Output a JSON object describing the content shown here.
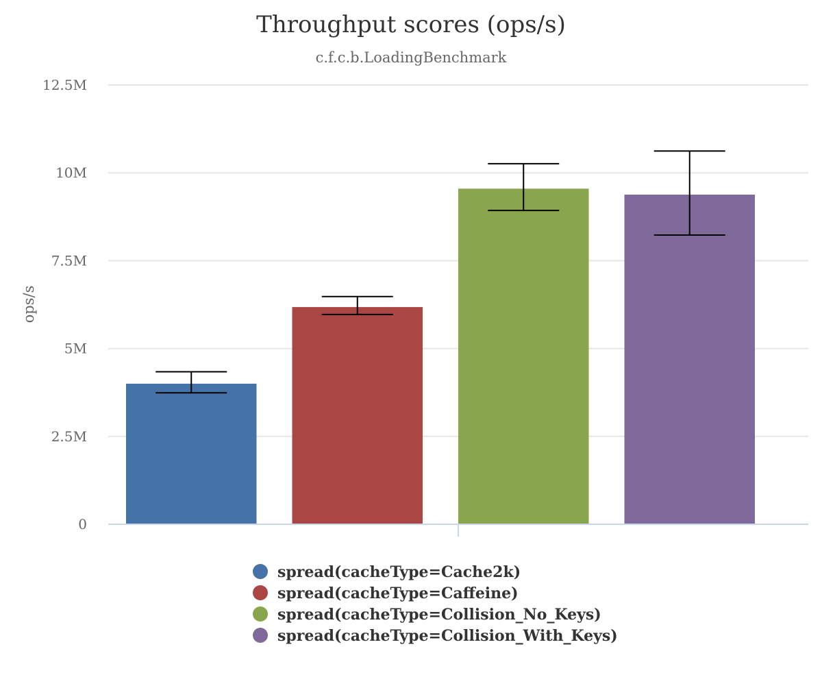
{
  "chart_data": {
    "type": "bar",
    "title": "Throughput scores (ops/s)",
    "subtitle": "c.f.c.b.LoadingBenchmark",
    "ylabel": "ops/s",
    "xlabel": "",
    "ylim": [
      0,
      12500000
    ],
    "yticks": [
      {
        "value": 0,
        "label": "0"
      },
      {
        "value": 2500000,
        "label": "2.5M"
      },
      {
        "value": 5000000,
        "label": "5M"
      },
      {
        "value": 7500000,
        "label": "7.5M"
      },
      {
        "value": 10000000,
        "label": "10M"
      },
      {
        "value": 12500000,
        "label": "12.5M"
      }
    ],
    "grid": true,
    "legend_position": "bottom-center",
    "series": [
      {
        "name": "spread(cacheType=Cache2k)",
        "color": "#4572a7",
        "value": 4000000,
        "error_low": 3740000,
        "error_high": 4340000
      },
      {
        "name": "spread(cacheType=Caffeine)",
        "color": "#aa4643",
        "value": 6180000,
        "error_low": 5970000,
        "error_high": 6480000
      },
      {
        "name": "spread(cacheType=Collision_No_Keys)",
        "color": "#89a54e",
        "value": 9550000,
        "error_low": 8930000,
        "error_high": 10260000
      },
      {
        "name": "spread(cacheType=Collision_With_Keys)",
        "color": "#80699b",
        "value": 9380000,
        "error_low": 8230000,
        "error_high": 10620000
      }
    ]
  }
}
